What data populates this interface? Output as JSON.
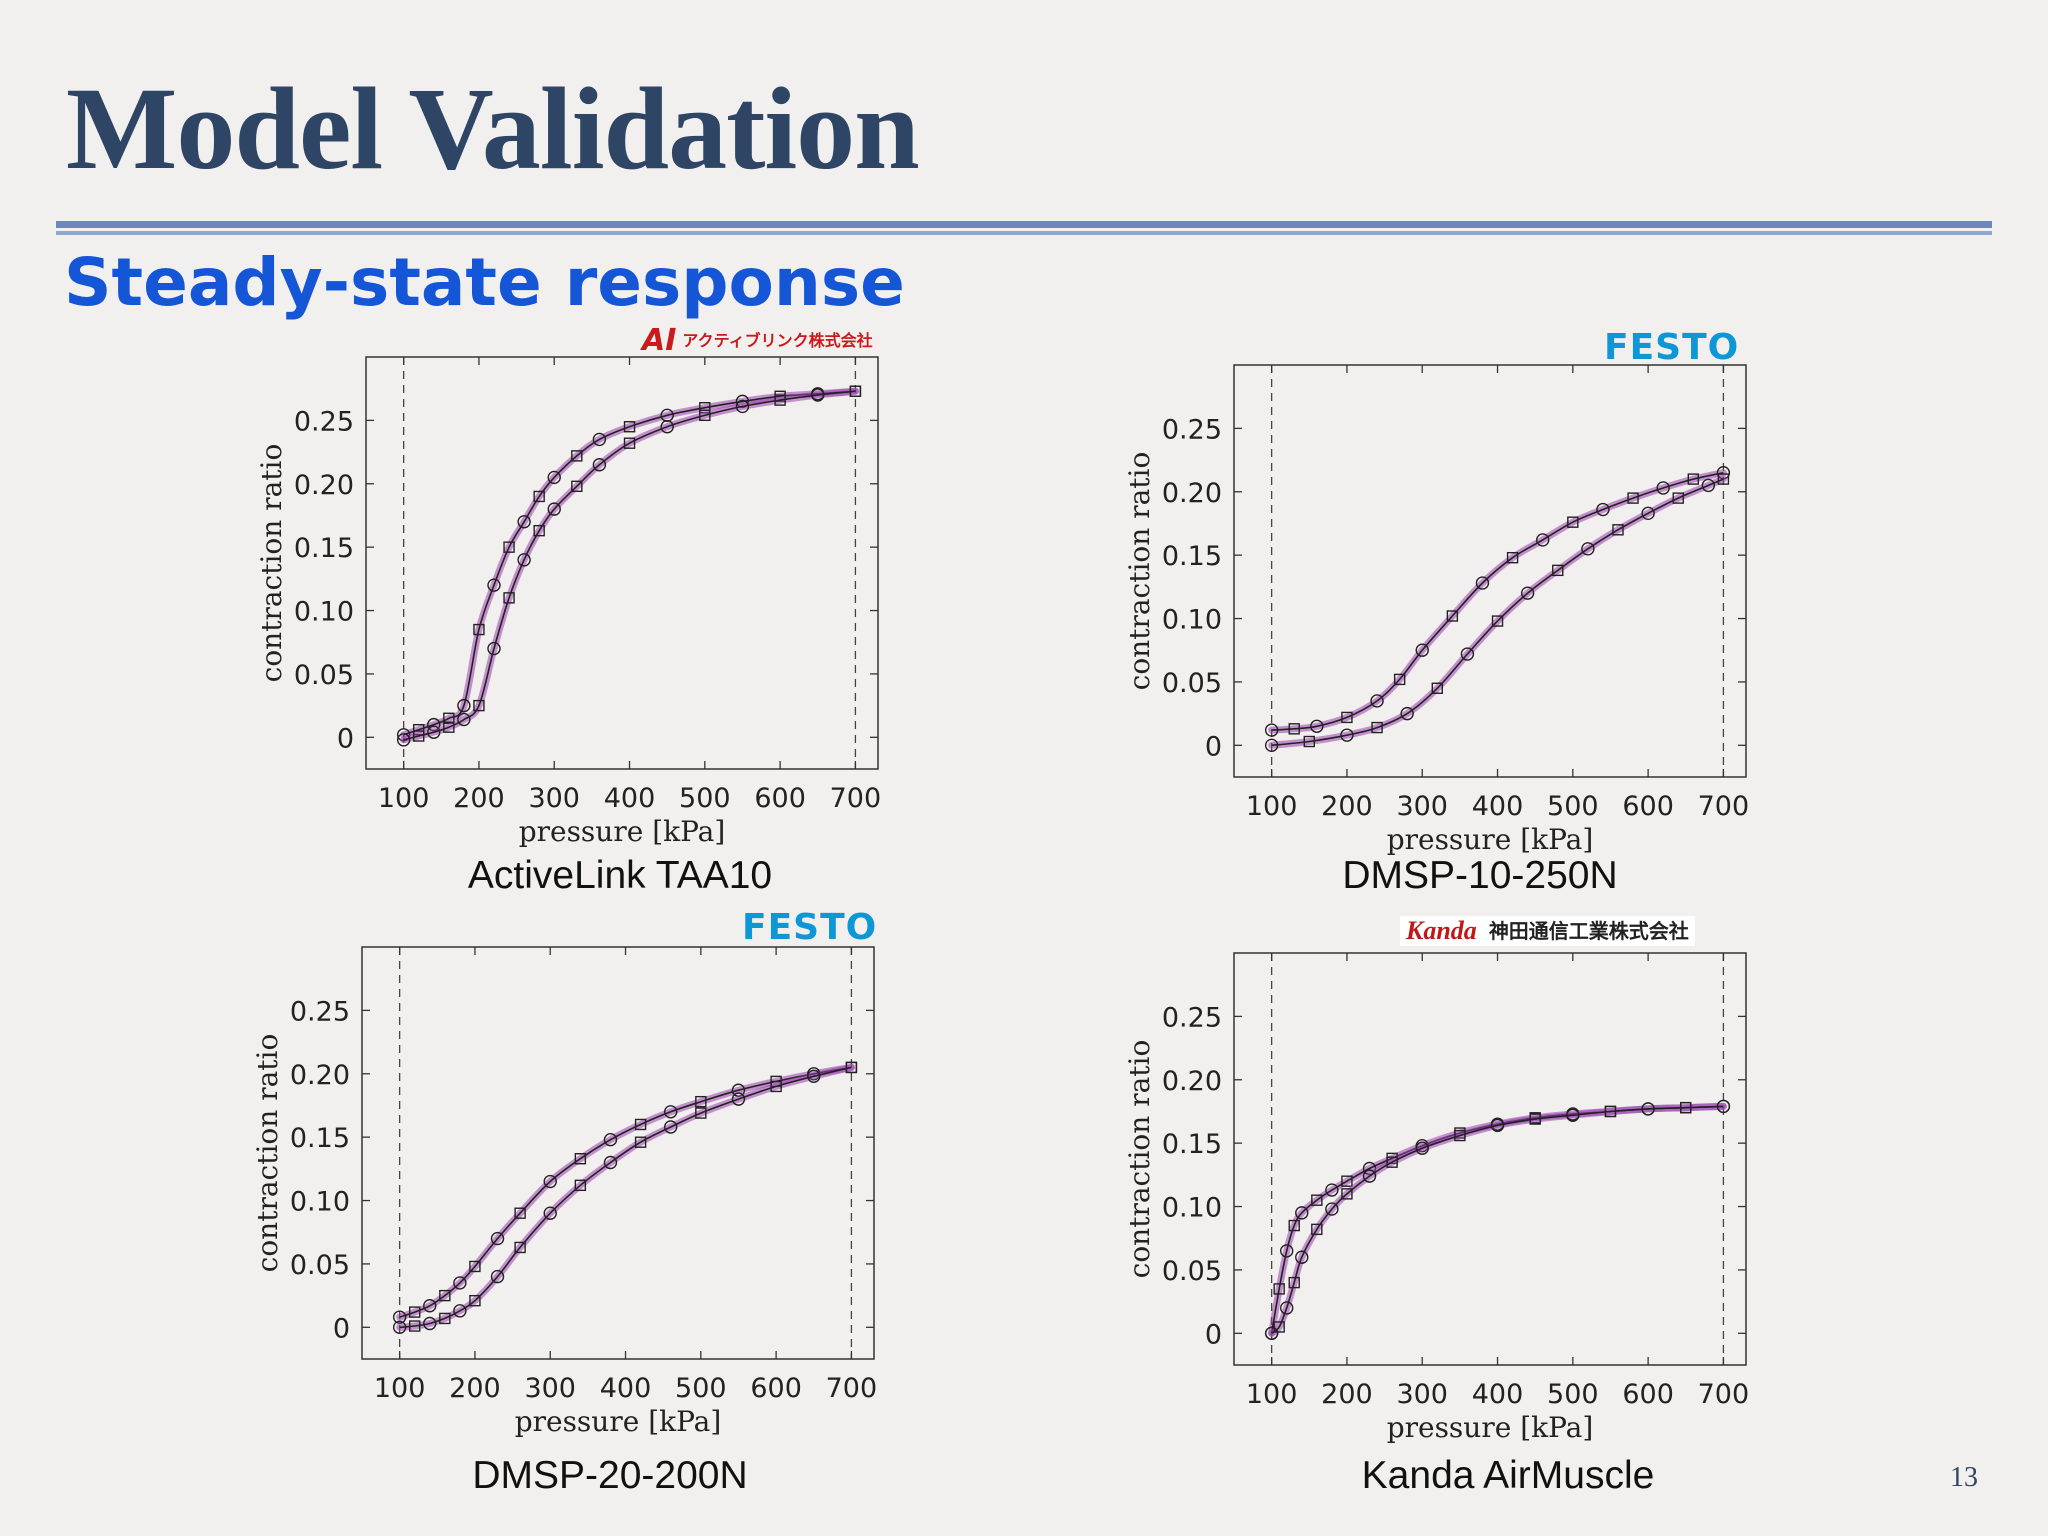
{
  "slide": {
    "title": "Model Validation",
    "subtitle": "Steady-state response",
    "page_number": "13"
  },
  "logos": {
    "activelink_mark": "AI",
    "activelink_text": "アクティブリンク株式会社",
    "festo": "FESTO",
    "kanda_mark": "Kanda",
    "kanda_text": "神田通信工業株式会社"
  },
  "colors": {
    "title": "#2e4565",
    "subtitle": "#1556d6",
    "rule": "#6a88bb",
    "band": "#9b3fb0",
    "festo": "#0d97d6"
  },
  "chart_data": [
    {
      "type": "line",
      "caption": "ActiveLink TAA10",
      "xlabel": "pressure [kPa]",
      "ylabel": "contraction ratio",
      "xlim": [
        50,
        730
      ],
      "ylim": [
        -0.025,
        0.3
      ],
      "xticks": [
        "100",
        "200",
        "300",
        "400",
        "500",
        "600",
        "700"
      ],
      "yticks": [
        "0",
        "0.05",
        "0.10",
        "0.15",
        "0.20",
        "0.25"
      ],
      "bounds_kpa": [
        100,
        700
      ],
      "grid": false,
      "series": [
        {
          "x": [
            100,
            120,
            140,
            160,
            180,
            200,
            220,
            240,
            260,
            280,
            300,
            330,
            360,
            400,
            450,
            500,
            550,
            600,
            650,
            700
          ],
          "y": [
            0.002,
            0.006,
            0.01,
            0.015,
            0.025,
            0.085,
            0.12,
            0.15,
            0.17,
            0.19,
            0.205,
            0.222,
            0.235,
            0.245,
            0.254,
            0.26,
            0.265,
            0.269,
            0.271,
            0.273
          ]
        },
        {
          "x": [
            100,
            120,
            140,
            160,
            180,
            200,
            220,
            240,
            260,
            280,
            300,
            330,
            360,
            400,
            450,
            500,
            550,
            600,
            650,
            700
          ],
          "y": [
            -0.002,
            0.001,
            0.004,
            0.008,
            0.014,
            0.025,
            0.07,
            0.11,
            0.14,
            0.163,
            0.18,
            0.198,
            0.215,
            0.232,
            0.245,
            0.254,
            0.261,
            0.266,
            0.27,
            0.273
          ]
        }
      ]
    },
    {
      "type": "line",
      "caption": "DMSP-10-250N",
      "xlabel": "pressure [kPa]",
      "ylabel": "contraction ratio",
      "xlim": [
        50,
        730
      ],
      "ylim": [
        -0.025,
        0.3
      ],
      "xticks": [
        "100",
        "200",
        "300",
        "400",
        "500",
        "600",
        "700"
      ],
      "yticks": [
        "0",
        "0.05",
        "0.10",
        "0.15",
        "0.20",
        "0.25"
      ],
      "bounds_kpa": [
        100,
        700
      ],
      "grid": false,
      "series": [
        {
          "x": [
            100,
            130,
            160,
            200,
            240,
            270,
            300,
            340,
            380,
            420,
            460,
            500,
            540,
            580,
            620,
            660,
            700
          ],
          "y": [
            0.012,
            0.013,
            0.015,
            0.022,
            0.035,
            0.052,
            0.075,
            0.102,
            0.128,
            0.148,
            0.162,
            0.176,
            0.186,
            0.195,
            0.203,
            0.21,
            0.215
          ]
        },
        {
          "x": [
            100,
            150,
            200,
            240,
            280,
            320,
            360,
            400,
            440,
            480,
            520,
            560,
            600,
            640,
            680,
            700
          ],
          "y": [
            0.0,
            0.003,
            0.008,
            0.014,
            0.025,
            0.045,
            0.072,
            0.098,
            0.12,
            0.138,
            0.155,
            0.17,
            0.183,
            0.195,
            0.205,
            0.21
          ]
        }
      ]
    },
    {
      "type": "line",
      "caption": "DMSP-20-200N",
      "xlabel": "pressure [kPa]",
      "ylabel": "contraction ratio",
      "xlim": [
        50,
        730
      ],
      "ylim": [
        -0.025,
        0.3
      ],
      "xticks": [
        "100",
        "200",
        "300",
        "400",
        "500",
        "600",
        "700"
      ],
      "yticks": [
        "0",
        "0.05",
        "0.10",
        "0.15",
        "0.20",
        "0.25"
      ],
      "bounds_kpa": [
        100,
        700
      ],
      "grid": false,
      "series": [
        {
          "x": [
            100,
            120,
            140,
            160,
            180,
            200,
            230,
            260,
            300,
            340,
            380,
            420,
            460,
            500,
            550,
            600,
            650,
            700
          ],
          "y": [
            0.008,
            0.012,
            0.017,
            0.025,
            0.035,
            0.048,
            0.07,
            0.09,
            0.115,
            0.133,
            0.148,
            0.16,
            0.17,
            0.178,
            0.187,
            0.194,
            0.2,
            0.205
          ]
        },
        {
          "x": [
            100,
            120,
            140,
            160,
            180,
            200,
            230,
            260,
            300,
            340,
            380,
            420,
            460,
            500,
            550,
            600,
            650,
            700
          ],
          "y": [
            0.0,
            0.001,
            0.003,
            0.007,
            0.013,
            0.021,
            0.04,
            0.063,
            0.09,
            0.112,
            0.13,
            0.146,
            0.158,
            0.169,
            0.18,
            0.19,
            0.198,
            0.205
          ]
        }
      ]
    },
    {
      "type": "line",
      "caption": "Kanda AirMuscle",
      "xlabel": "pressure [kPa]",
      "ylabel": "contraction ratio",
      "xlim": [
        50,
        730
      ],
      "ylim": [
        -0.025,
        0.3
      ],
      "xticks": [
        "100",
        "200",
        "300",
        "400",
        "500",
        "600",
        "700"
      ],
      "yticks": [
        "0",
        "0.05",
        "0.10",
        "0.15",
        "0.20",
        "0.25"
      ],
      "bounds_kpa": [
        100,
        700
      ],
      "grid": false,
      "series": [
        {
          "x": [
            100,
            110,
            120,
            130,
            140,
            160,
            180,
            200,
            230,
            260,
            300,
            350,
            400,
            450,
            500,
            550,
            600,
            650,
            700
          ],
          "y": [
            0.0,
            0.035,
            0.065,
            0.085,
            0.095,
            0.105,
            0.113,
            0.12,
            0.13,
            0.138,
            0.148,
            0.158,
            0.165,
            0.17,
            0.173,
            0.175,
            0.177,
            0.178,
            0.179
          ]
        },
        {
          "x": [
            100,
            110,
            120,
            130,
            140,
            160,
            180,
            200,
            230,
            260,
            300,
            350,
            400,
            450,
            500,
            550,
            600,
            650,
            700
          ],
          "y": [
            0.0,
            0.005,
            0.02,
            0.04,
            0.06,
            0.082,
            0.098,
            0.11,
            0.124,
            0.135,
            0.146,
            0.156,
            0.164,
            0.169,
            0.172,
            0.175,
            0.177,
            0.178,
            0.179
          ]
        }
      ]
    }
  ]
}
